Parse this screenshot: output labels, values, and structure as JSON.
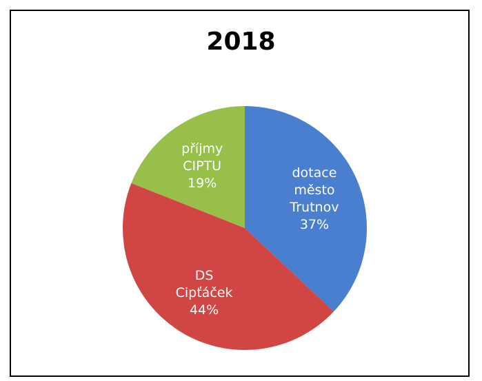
{
  "chart_data": {
    "type": "pie",
    "title": "2018",
    "start_angle_deg": 0,
    "direction": "clockwise",
    "slices": [
      {
        "label_lines": [
          "dotace",
          "město",
          "Trutnov"
        ],
        "value_label": "37%",
        "value": 37,
        "color": "#4a7fcf"
      },
      {
        "label_lines": [
          "DS",
          "Cipťáček"
        ],
        "value_label": "44%",
        "value": 44,
        "color": "#d04645"
      },
      {
        "label_lines": [
          "příjmy",
          "CIPTU"
        ],
        "value_label": "19%",
        "value": 19,
        "color": "#98bf4a"
      }
    ]
  }
}
